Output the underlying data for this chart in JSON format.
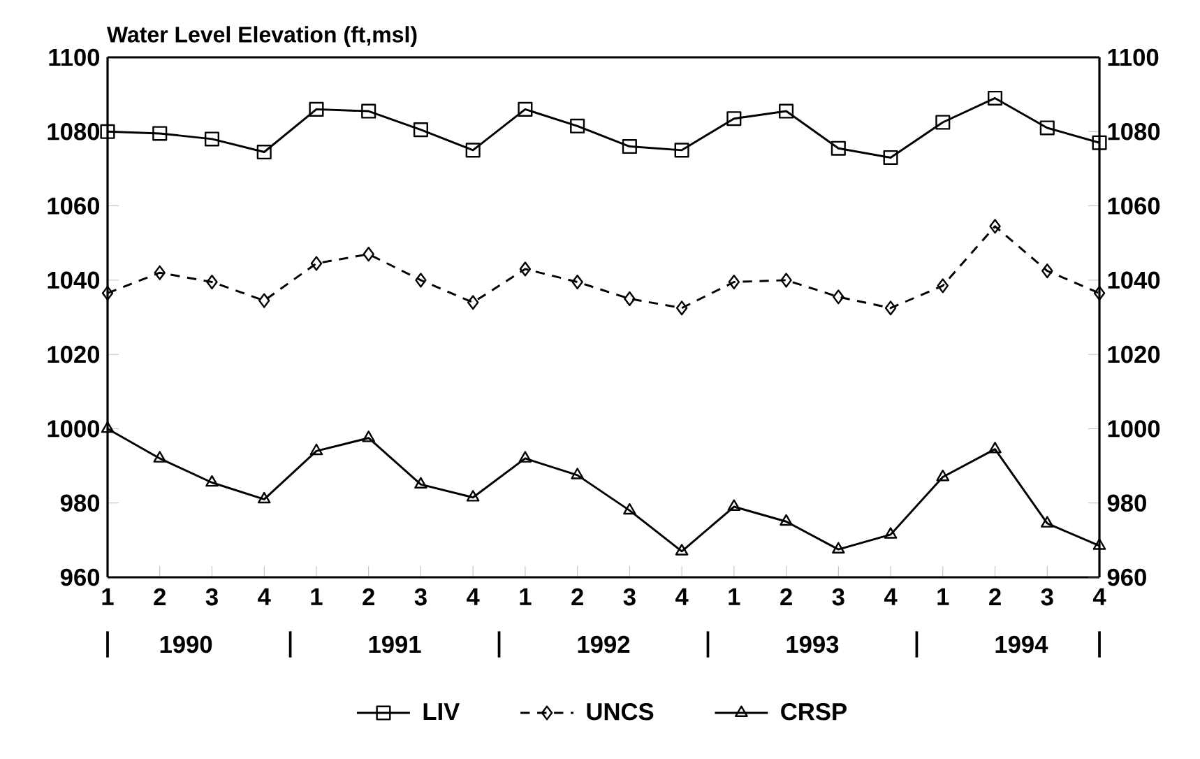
{
  "chart_data": {
    "type": "line",
    "title": "Water Level Elevation (ft,msl)",
    "categories": [
      "1",
      "2",
      "3",
      "4",
      "1",
      "2",
      "3",
      "4",
      "1",
      "2",
      "3",
      "4",
      "1",
      "2",
      "3",
      "4",
      "1",
      "2",
      "3",
      "4"
    ],
    "series": [
      {
        "name": "LIV",
        "color": "#000000",
        "marker": "square",
        "line_style": "solid",
        "values": [
          1080,
          1079.5,
          1078,
          1074.5,
          1086,
          1085.5,
          1080.5,
          1075,
          1086,
          1081.5,
          1076,
          1075,
          1083.5,
          1085.5,
          1075.5,
          1073,
          1082.5,
          1089,
          1081,
          1077
        ]
      },
      {
        "name": "UNCS",
        "color": "#000000",
        "marker": "diamond",
        "line_style": "dashed",
        "values": [
          1036.5,
          1042,
          1039.5,
          1034.5,
          1044.5,
          1047,
          1040,
          1034,
          1043,
          1039.5,
          1035,
          1032.5,
          1039.5,
          1040,
          1035.5,
          1032.5,
          1038.5,
          1054.5,
          1042.5,
          1036.5
        ]
      },
      {
        "name": "CRSP",
        "color": "#000000",
        "marker": "triangle",
        "line_style": "solid",
        "values": [
          1000,
          992,
          985.5,
          981,
          994,
          997.5,
          985,
          981.5,
          992,
          987.5,
          978,
          967,
          979,
          975,
          967.5,
          971.5,
          987,
          994.5,
          974.5,
          968.5
        ]
      }
    ],
    "annotations": [
      "1990",
      "1991",
      "1992",
      "1993",
      "1994"
    ],
    "ylim": [
      960,
      1100
    ],
    "yticks": [
      960,
      980,
      1000,
      1020,
      1040,
      1060,
      1080,
      1100
    ],
    "y2lim": [
      960,
      1100
    ],
    "y2ticks": [
      960,
      980,
      1000,
      1020,
      1040,
      1060,
      1080,
      1100
    ],
    "grid": false,
    "legend": "bottom"
  }
}
